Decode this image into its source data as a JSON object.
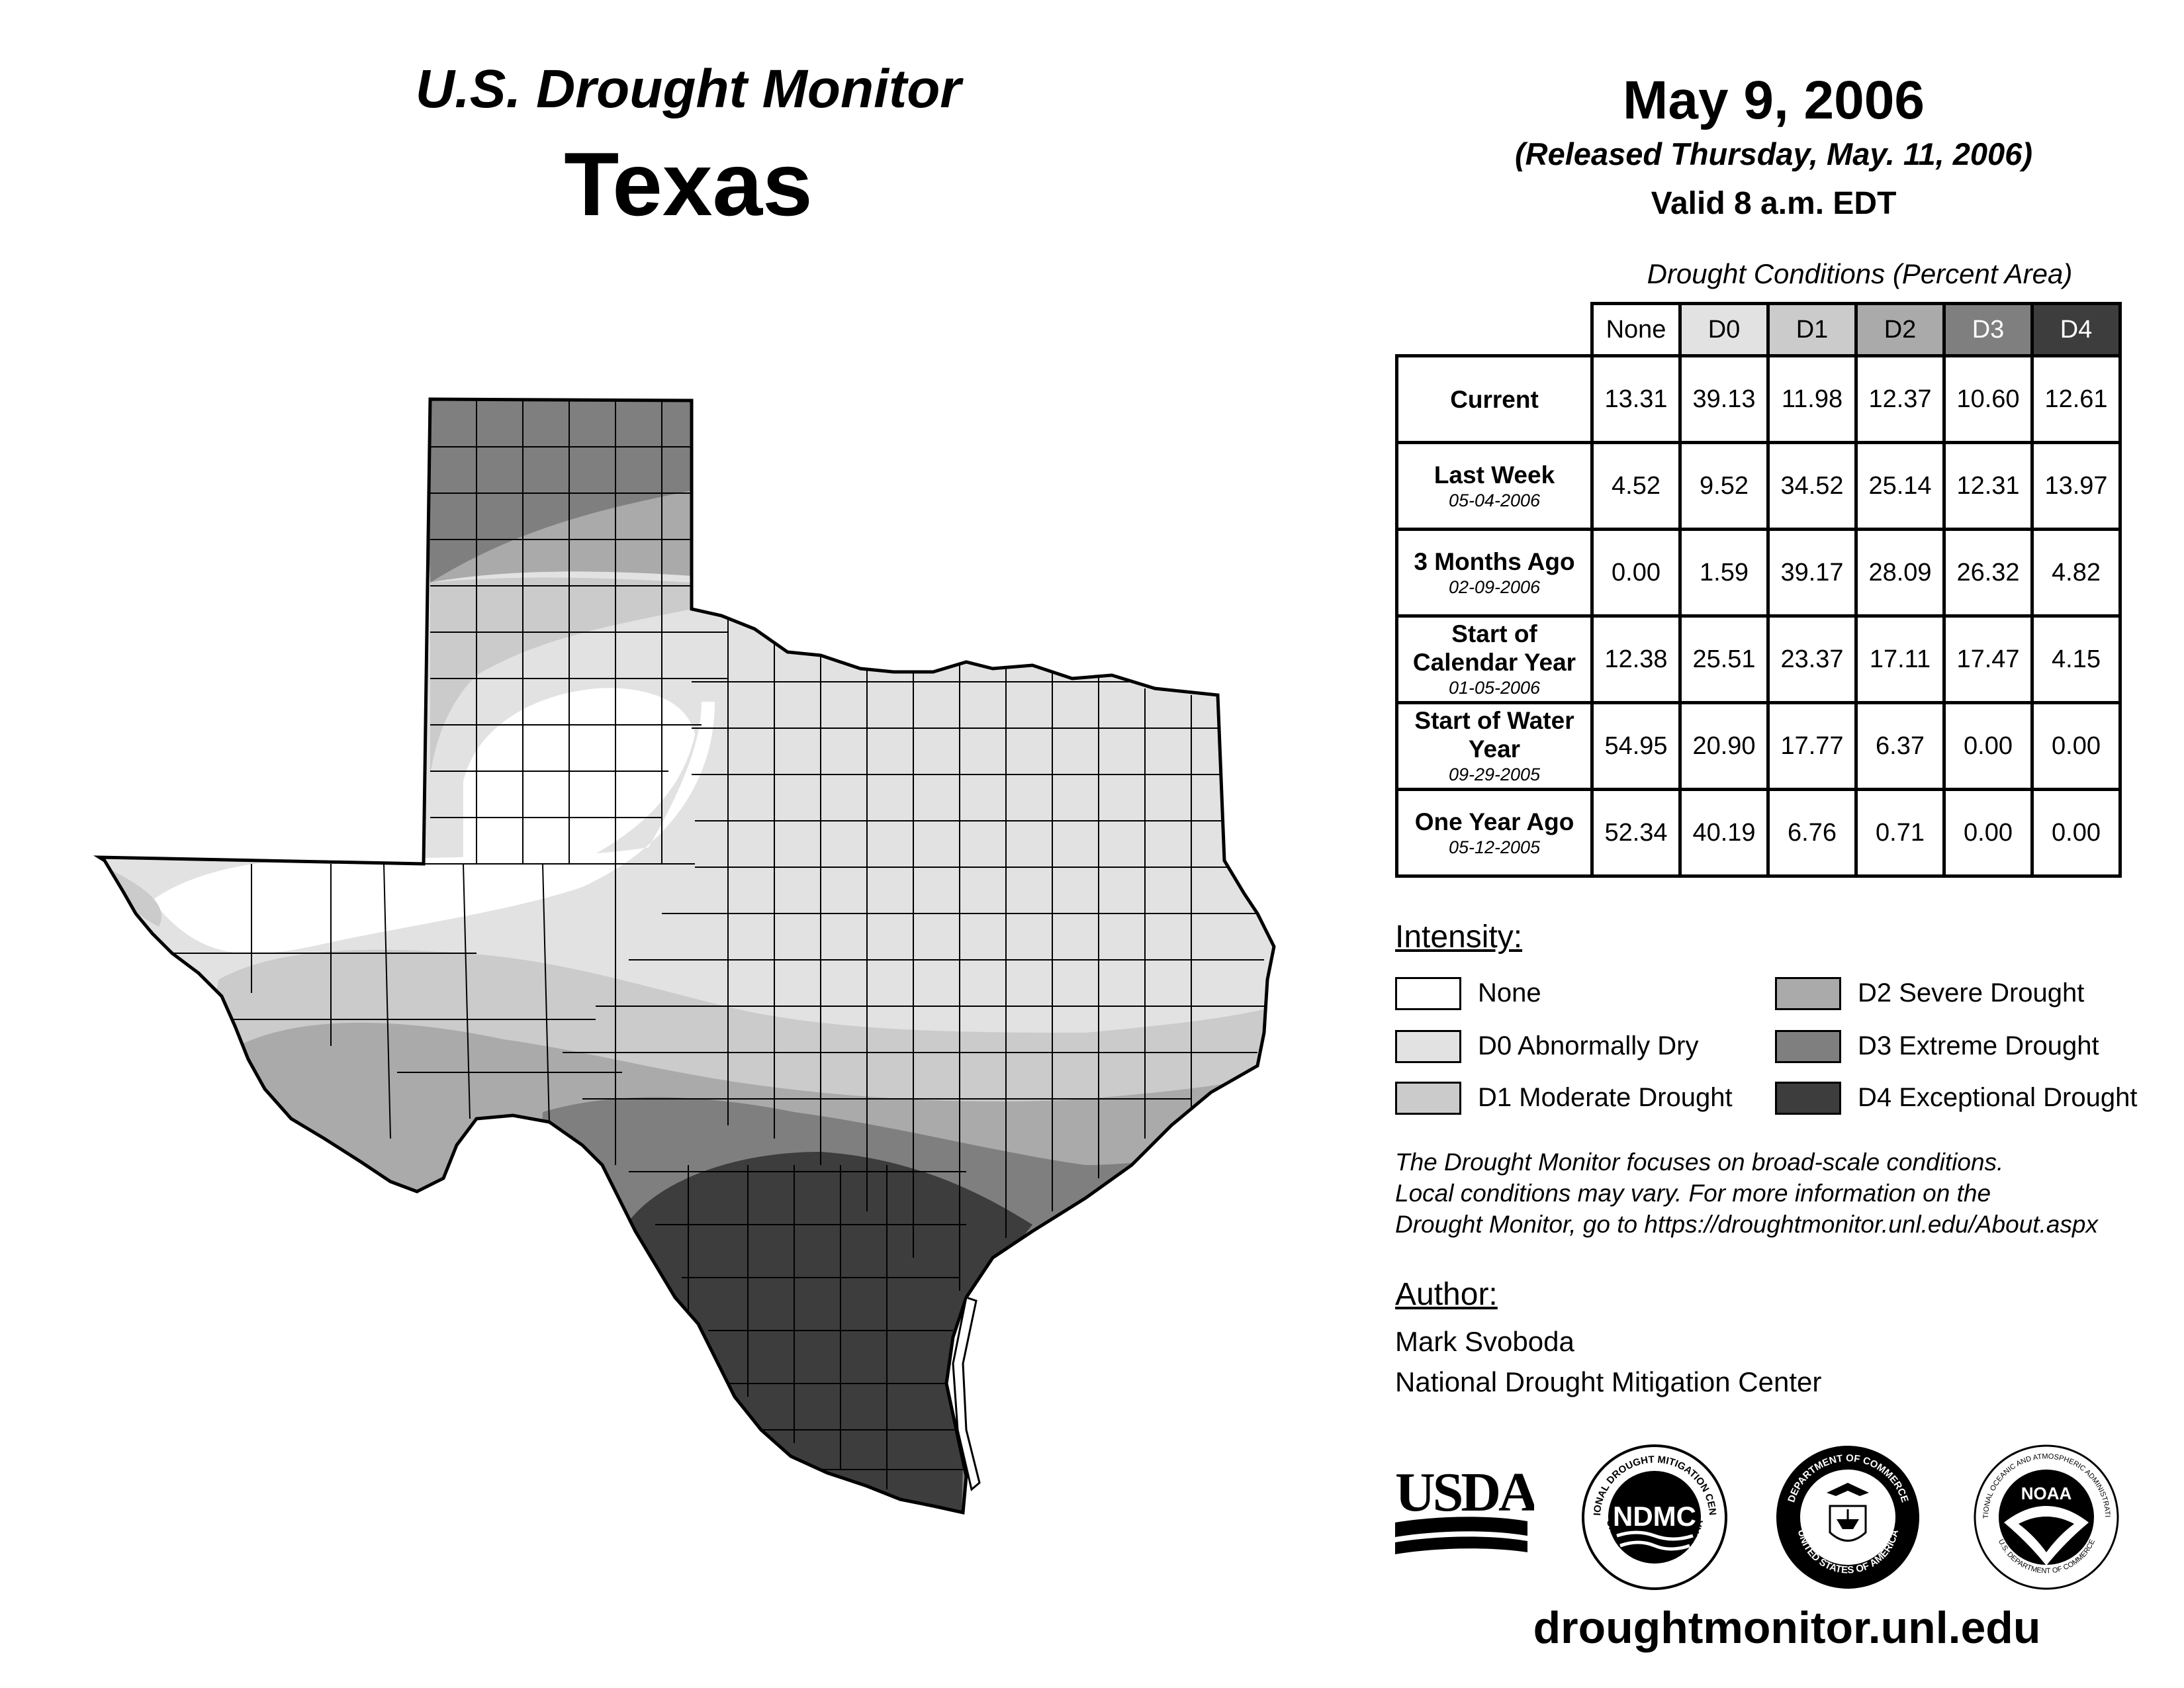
{
  "header": {
    "monitor_title": "U.S. Drought Monitor",
    "state": "Texas",
    "date": "May 9, 2006",
    "released": "(Released Thursday, May. 11, 2006)",
    "valid": "Valid 8 a.m. EDT"
  },
  "table": {
    "caption": "Drought Conditions (Percent Area)",
    "columns": [
      "None",
      "D0",
      "D1",
      "D2",
      "D3",
      "D4"
    ],
    "column_fills": [
      "#ffffff",
      "#e2e2e2",
      "#cbcbcb",
      "#aaaaaa",
      "#7f7f7f",
      "#3d3d3d"
    ],
    "rows": [
      {
        "label": "Current",
        "date": "",
        "values": [
          "13.31",
          "39.13",
          "11.98",
          "12.37",
          "10.60",
          "12.61"
        ]
      },
      {
        "label": "Last Week",
        "date": "05-04-2006",
        "values": [
          "4.52",
          "9.52",
          "34.52",
          "25.14",
          "12.31",
          "13.97"
        ]
      },
      {
        "label": "3 Months Ago",
        "date": "02-09-2006",
        "values": [
          "0.00",
          "1.59",
          "39.17",
          "28.09",
          "26.32",
          "4.82"
        ]
      },
      {
        "label": "Start of Calendar Year",
        "date": "01-05-2006",
        "values": [
          "12.38",
          "25.51",
          "23.37",
          "17.11",
          "17.47",
          "4.15"
        ]
      },
      {
        "label": "Start of Water Year",
        "date": "09-29-2005",
        "values": [
          "54.95",
          "20.90",
          "17.77",
          "6.37",
          "0.00",
          "0.00"
        ]
      },
      {
        "label": "One Year Ago",
        "date": "05-12-2005",
        "values": [
          "52.34",
          "40.19",
          "6.76",
          "0.71",
          "0.00",
          "0.00"
        ]
      }
    ]
  },
  "legend": {
    "title": "Intensity:",
    "items": [
      {
        "label": "None",
        "color": "#ffffff"
      },
      {
        "label": "D0 Abnormally Dry",
        "color": "#e2e2e2"
      },
      {
        "label": "D1 Moderate Drought",
        "color": "#cbcbcb"
      },
      {
        "label": "D2 Severe Drought",
        "color": "#aaaaaa"
      },
      {
        "label": "D3 Extreme Drought",
        "color": "#7f7f7f"
      },
      {
        "label": "D4 Exceptional Drought",
        "color": "#3d3d3d"
      }
    ]
  },
  "note": {
    "line1": "The Drought Monitor focuses on broad-scale conditions.",
    "line2": "Local conditions may vary. For more information on the",
    "line3": "Drought Monitor, go to https://droughtmonitor.unl.edu/About.aspx"
  },
  "author": {
    "title": "Author:",
    "name": "Mark Svoboda",
    "org": "National Drought Mitigation Center"
  },
  "logos": {
    "usda": "USDA",
    "ndmc": "NDMC",
    "ndmc_ring_top": "NATIONAL DROUGHT MITIGATION CENTER",
    "ndmc_ring_bottom": "UNIVERSITY OF NEBRASKA",
    "doc_ring_top": "DEPARTMENT OF COMMERCE",
    "doc_ring_bottom": "UNITED STATES OF AMERICA",
    "noaa": "NOAA",
    "noaa_ring_top": "NATIONAL OCEANIC AND ATMOSPHERIC ADMINISTRATION",
    "noaa_ring_bottom": "U.S. DEPARTMENT OF COMMERCE"
  },
  "url": "droughtmonitor.unl.edu"
}
